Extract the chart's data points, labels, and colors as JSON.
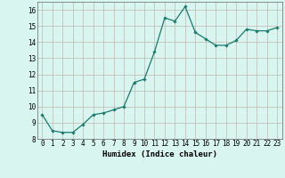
{
  "x": [
    0,
    1,
    2,
    3,
    4,
    5,
    6,
    7,
    8,
    9,
    10,
    11,
    12,
    13,
    14,
    15,
    16,
    17,
    18,
    19,
    20,
    21,
    22,
    23
  ],
  "y": [
    9.5,
    8.5,
    8.4,
    8.4,
    8.9,
    9.5,
    9.6,
    9.8,
    10.0,
    11.5,
    11.7,
    13.4,
    15.5,
    15.3,
    16.2,
    14.6,
    14.2,
    13.8,
    13.8,
    14.1,
    14.8,
    14.7,
    14.7,
    14.9
  ],
  "xlabel": "Humidex (Indice chaleur)",
  "ylim": [
    8,
    16.5
  ],
  "xlim": [
    -0.5,
    23.5
  ],
  "yticks": [
    8,
    9,
    10,
    11,
    12,
    13,
    14,
    15,
    16
  ],
  "xticks": [
    0,
    1,
    2,
    3,
    4,
    5,
    6,
    7,
    8,
    9,
    10,
    11,
    12,
    13,
    14,
    15,
    16,
    17,
    18,
    19,
    20,
    21,
    22,
    23
  ],
  "line_color": "#1a7a6e",
  "marker": "D",
  "marker_size": 1.8,
  "bg_color": "#d8f5f0",
  "grid_color": "#c0b8b0",
  "axes_bg": "#d8f5f0",
  "tick_fontsize": 5.5,
  "xlabel_fontsize": 6.5
}
